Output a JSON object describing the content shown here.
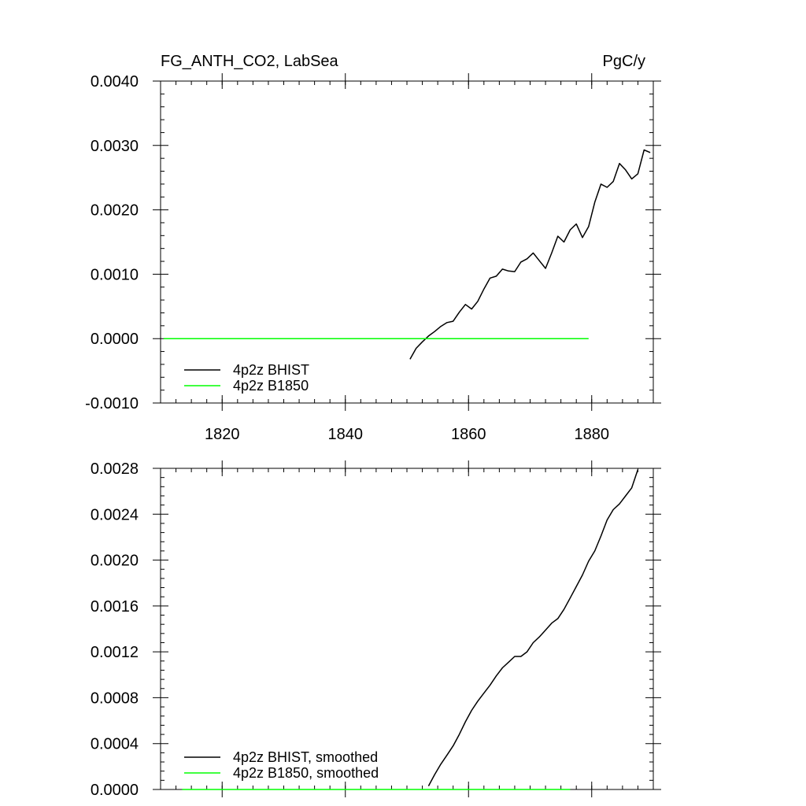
{
  "chart_data": [
    {
      "type": "line",
      "title": "FG_ANTH_CO2, LabSea",
      "units": "PgC/y",
      "xlim": [
        1810,
        1890
      ],
      "ylim": [
        -0.001,
        0.004
      ],
      "x_ticks": [
        1820,
        1840,
        1860,
        1880
      ],
      "x_tick_labels": [
        "1820",
        "1840",
        "1860",
        "1880"
      ],
      "y_ticks": [
        -0.001,
        0.0,
        0.001,
        0.002,
        0.003,
        0.004
      ],
      "y_tick_labels": [
        "-0.0010",
        "0.0000",
        "0.0010",
        "0.0020",
        "0.0030",
        "0.0040"
      ],
      "legend_position": "bottom-left",
      "series": [
        {
          "name": "4p2z BHIST",
          "color": "#000000",
          "x": [
            1850.5,
            1851.5,
            1852.5,
            1853.5,
            1854.5,
            1855.5,
            1856.5,
            1857.5,
            1858.5,
            1859.5,
            1860.5,
            1861.5,
            1862.5,
            1863.5,
            1864.5,
            1865.5,
            1866.5,
            1867.5,
            1868.5,
            1869.5,
            1870.5,
            1871.5,
            1872.5,
            1873.5,
            1874.5,
            1875.5,
            1876.5,
            1877.5,
            1878.5,
            1879.5,
            1880.5,
            1881.5,
            1882.5,
            1883.5,
            1884.5,
            1885.5,
            1886.5,
            1887.5,
            1888.5,
            1889.5
          ],
          "y": [
            -0.00032,
            -0.00015,
            -5e-05,
            4e-05,
            0.00011,
            0.00019,
            0.00025,
            0.00027,
            0.00041,
            0.00053,
            0.00046,
            0.00058,
            0.00077,
            0.00094,
            0.00097,
            0.00108,
            0.00105,
            0.00104,
            0.00119,
            0.00124,
            0.00133,
            0.00121,
            0.00109,
            0.00133,
            0.00159,
            0.0015,
            0.00169,
            0.00178,
            0.00157,
            0.00174,
            0.00212,
            0.0024,
            0.00235,
            0.00244,
            0.00272,
            0.00262,
            0.00248,
            0.00256,
            0.00293,
            0.00289
          ]
        },
        {
          "name": "4p2z B1850",
          "color": "#00ff00",
          "x": [
            1810.5,
            1879.5
          ],
          "y": [
            0.0,
            0.0
          ]
        }
      ]
    },
    {
      "type": "line",
      "xlim": [
        1810,
        1890
      ],
      "ylim": [
        0.0,
        0.0028
      ],
      "x_ticks": [
        1820,
        1840,
        1860,
        1880
      ],
      "y_ticks": [
        0.0,
        0.0004,
        0.0008,
        0.0012,
        0.0016,
        0.002,
        0.0024,
        0.0028
      ],
      "y_tick_labels": [
        "0.0000",
        "0.0004",
        "0.0008",
        "0.0012",
        "0.0016",
        "0.0020",
        "0.0024",
        "0.0028"
      ],
      "legend_position": "bottom-left",
      "series": [
        {
          "name": "4p2z BHIST, smoothed",
          "color": "#000000",
          "x": [
            1853.5,
            1854.5,
            1855.5,
            1856.5,
            1857.5,
            1858.5,
            1859.5,
            1860.5,
            1861.5,
            1862.5,
            1863.5,
            1864.5,
            1865.5,
            1866.5,
            1867.5,
            1868.5,
            1869.5,
            1870.5,
            1871.5,
            1872.5,
            1873.5,
            1874.5,
            1875.5,
            1876.5,
            1877.5,
            1878.5,
            1879.5,
            1880.5,
            1881.5,
            1882.5,
            1883.5,
            1884.5,
            1885.5,
            1886.5,
            1887.5
          ],
          "y": [
            3e-05,
            0.00013,
            0.00022,
            0.0003,
            0.00038,
            0.00048,
            0.00059,
            0.00069,
            0.00077,
            0.00084,
            0.00091,
            0.00099,
            0.00106,
            0.00111,
            0.00116,
            0.00116,
            0.0012,
            0.00128,
            0.00133,
            0.00139,
            0.00145,
            0.00149,
            0.00157,
            0.00167,
            0.00177,
            0.00187,
            0.00199,
            0.00208,
            0.00221,
            0.00235,
            0.00244,
            0.00249,
            0.00256,
            0.00263,
            0.00279
          ]
        },
        {
          "name": "4p2z B1850, smoothed",
          "color": "#00ff00",
          "x": [
            1813.5,
            1876.5
          ],
          "y": [
            0.0,
            0.0
          ]
        }
      ]
    }
  ]
}
